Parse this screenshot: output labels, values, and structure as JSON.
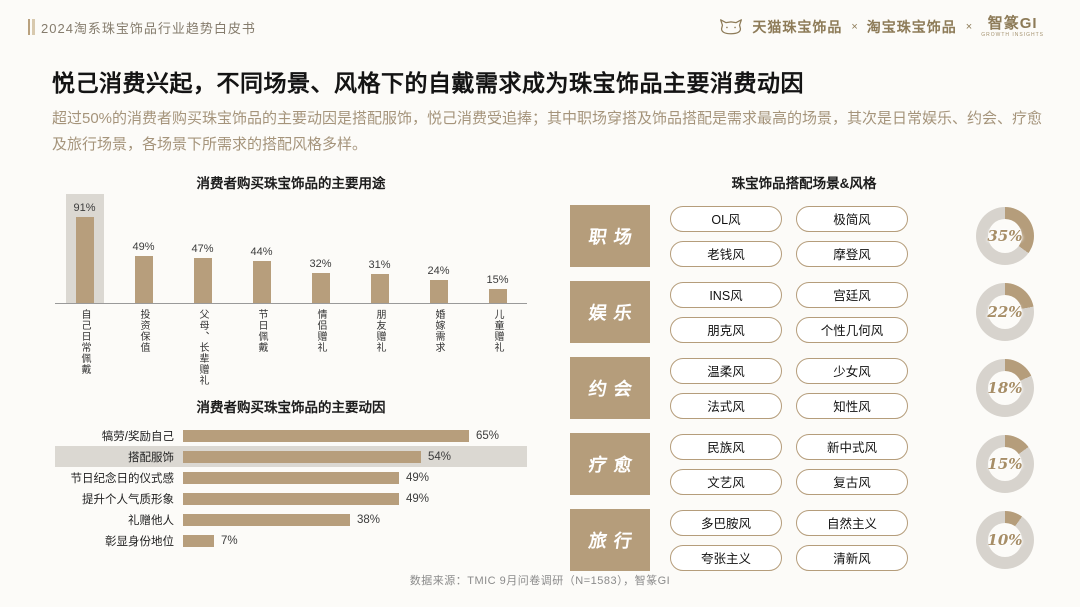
{
  "header": {
    "title": "2024淘系珠宝饰品行业趋势白皮书",
    "logos": [
      "天猫珠宝饰品",
      "淘宝珠宝饰品",
      "智篆GI"
    ],
    "logo_sub": "GROWTH INSIGHTS",
    "logo_separator": "×"
  },
  "main": {
    "title": "悦己消费兴起，不同场景、风格下的自戴需求成为珠宝饰品主要消费动因",
    "subtitle": "超过50%的消费者购买珠宝饰品的主要动因是搭配服饰，悦己消费受追捧；其中职场穿搭及饰品搭配是需求最高的场景，其次是日常娱乐、约会、疗愈及旅行场景，各场景下所需求的搭配风格多样。"
  },
  "chart_data": [
    {
      "type": "bar",
      "title": "消费者购买珠宝饰品的主要用途",
      "categories": [
        "自己日常佩戴",
        "投资保值",
        "父母、长辈赠礼",
        "节日佩戴",
        "情侣赠礼",
        "朋友赠礼",
        "婚嫁需求",
        "儿童赠礼"
      ],
      "values": [
        91,
        49,
        47,
        44,
        32,
        31,
        24,
        15
      ],
      "unit": "%",
      "ylim": [
        0,
        100
      ],
      "highlight_index": 0,
      "bar_color": "#b79e7c"
    },
    {
      "type": "bar",
      "orientation": "horizontal",
      "title": "消费者购买珠宝饰品的主要动因",
      "categories": [
        "犒劳/奖励自己",
        "搭配服饰",
        "节日纪念日的仪式感",
        "提升个人气质形象",
        "礼赠他人",
        "彰显身份地位"
      ],
      "values": [
        65,
        54,
        49,
        49,
        38,
        7
      ],
      "unit": "%",
      "xlim": [
        0,
        70
      ],
      "highlight_index": 1,
      "bar_color": "#b79e7c"
    },
    {
      "type": "pie",
      "title": "珠宝饰品搭配场景&风格",
      "categories": [
        "职场",
        "娱乐",
        "约会",
        "疗愈",
        "旅行"
      ],
      "values": [
        35,
        22,
        18,
        15,
        10
      ],
      "unit": "%"
    }
  ],
  "scenes": {
    "title": "珠宝饰品搭配场景&风格",
    "rows": [
      {
        "label": "职场",
        "styles": [
          "OL风",
          "极简风",
          "老钱风",
          "摩登风"
        ],
        "percent": 35
      },
      {
        "label": "娱乐",
        "styles": [
          "INS风",
          "宫廷风",
          "朋克风",
          "个性几何风"
        ],
        "percent": 22
      },
      {
        "label": "约会",
        "styles": [
          "温柔风",
          "少女风",
          "法式风",
          "知性风"
        ],
        "percent": 18
      },
      {
        "label": "疗愈",
        "styles": [
          "民族风",
          "新中式风",
          "文艺风",
          "复古风"
        ],
        "percent": 15
      },
      {
        "label": "旅行",
        "styles": [
          "多巴胺风",
          "自然主义",
          "夸张主义",
          "清新风"
        ],
        "percent": 10
      }
    ]
  },
  "footer": {
    "source": "数据来源：TMIC 9月问卷调研（N=1583），智篆GI"
  },
  "colors": {
    "accent": "#b59d7b",
    "bar": "#b79e7c",
    "highlight_bg": "#dbd8d2",
    "donut_rest": "#d7d3cd",
    "subtitle_text": "#a5947b"
  }
}
